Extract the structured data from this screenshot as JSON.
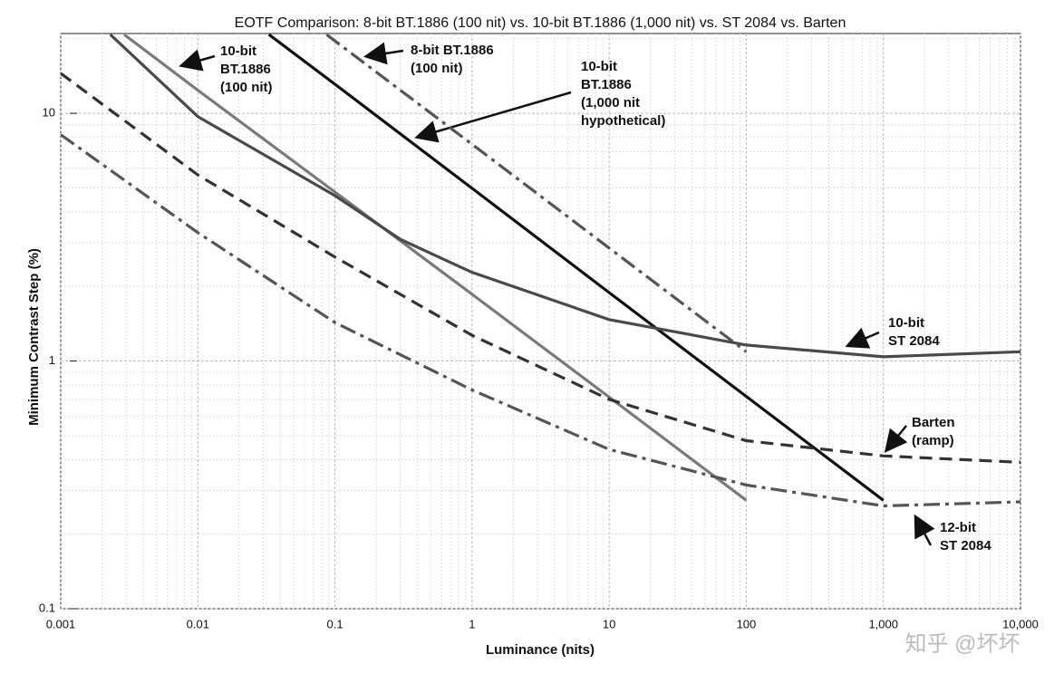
{
  "chart_data": {
    "type": "line",
    "title": "EOTF Comparison: 8-bit BT.1886 (100 nit) vs. 10-bit BT.1886 (1,000 nit) vs. ST 2084 vs. Barten",
    "x_label": "Luminance (nits)",
    "y_label": "Minimum Contrast Step (%)",
    "xscale": "log",
    "yscale": "log",
    "grid": true,
    "xlim": [
      0.001,
      10000
    ],
    "ylim": [
      0.1,
      21
    ],
    "xticks": [
      0.001,
      0.01,
      0.1,
      1,
      10,
      100,
      {
        "value": 1000,
        "label": "1,000"
      },
      {
        "value": 10000,
        "label": "10,000"
      }
    ],
    "yticks": [
      0.1,
      1,
      10
    ],
    "series": [
      {
        "color": "#555555",
        "dash": "dashdot",
        "x": [
          0.087,
          0.1,
          1,
          10,
          100
        ],
        "values": [
          20.8,
          19.6,
          7.5,
          2.86,
          1.09
        ]
      },
      {
        "color": "#111111",
        "dash": "solid",
        "x": [
          0.033,
          0.1,
          1,
          10,
          100,
          1000
        ],
        "values": [
          20.8,
          13.1,
          4.98,
          1.89,
          0.72,
          0.274
        ]
      },
      {
        "color": "#7a7a7a",
        "dash": "solid",
        "x": [
          0.0029,
          0.01,
          0.1,
          1,
          10,
          100
        ],
        "values": [
          20.8,
          12.4,
          4.81,
          1.86,
          0.715,
          0.274
        ]
      },
      {
        "color": "#4a4a4a",
        "dash": "solid",
        "x": [
          0.0023,
          0.01,
          0.1,
          0.3,
          1,
          10,
          100,
          1000,
          10000
        ],
        "values": [
          20.8,
          9.7,
          4.65,
          3.1,
          2.28,
          1.47,
          1.16,
          1.04,
          1.09
        ]
      },
      {
        "color": "#333333",
        "dash": "dashed",
        "x": [
          0.001,
          0.01,
          0.1,
          1,
          10,
          100,
          1000,
          10000
        ],
        "values": [
          14.5,
          5.64,
          2.63,
          1.27,
          0.7,
          0.477,
          0.414,
          0.39
        ]
      },
      {
        "color": "#555555",
        "dash": "dashdot",
        "x": [
          0.001,
          0.01,
          0.1,
          1,
          10,
          100,
          1000,
          10000
        ],
        "values": [
          8.2,
          3.3,
          1.43,
          0.764,
          0.44,
          0.316,
          0.26,
          0.27
        ]
      }
    ],
    "annotations": [
      {
        "text": [
          "10-bit",
          "BT.1886",
          "(100 nit)"
        ]
      },
      {
        "text": [
          "8-bit BT.1886",
          "(100 nit)"
        ]
      },
      {
        "text": [
          "10-bit",
          "BT.1886",
          "(1,000 nit",
          "hypothetical)"
        ]
      },
      {
        "text": [
          "10-bit",
          "ST 2084"
        ]
      },
      {
        "text": [
          "Barten",
          "(ramp)"
        ]
      },
      {
        "text": [
          "12-bit",
          "ST 2084"
        ]
      }
    ],
    "watermark": "知乎 @坏坏"
  }
}
